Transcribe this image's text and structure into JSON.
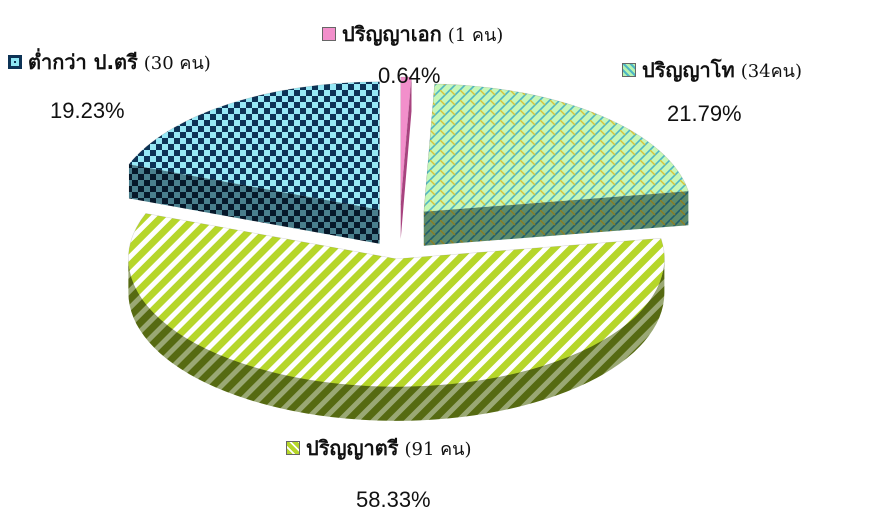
{
  "chart_data": {
    "type": "pie",
    "three_d": true,
    "exploded": true,
    "legend_placement": "labels next to slices",
    "slices": [
      {
        "name": "ปริญญาเอก",
        "count": "(1 คน)",
        "percent_label": "0.64%",
        "value": 0.64,
        "color": "#f08ec8",
        "pattern": "solid"
      },
      {
        "name": "ปริญญาโท",
        "count": "(34คน)",
        "percent_label": "21.79%",
        "value": 21.79,
        "color": "#b7f4b0",
        "pattern": "weave"
      },
      {
        "name": "ปริญญาตรี",
        "count": "(91 คน)",
        "percent_label": "58.33%",
        "value": 58.33,
        "color": "#b9d92f",
        "pattern": "diagonal-stripes"
      },
      {
        "name": "ต่ำกว่า ป.ตรี",
        "count": "(30 คน)",
        "percent_label": "19.23%",
        "value": 19.23,
        "color": "#8ee6f4",
        "pattern": "checker"
      }
    ]
  }
}
